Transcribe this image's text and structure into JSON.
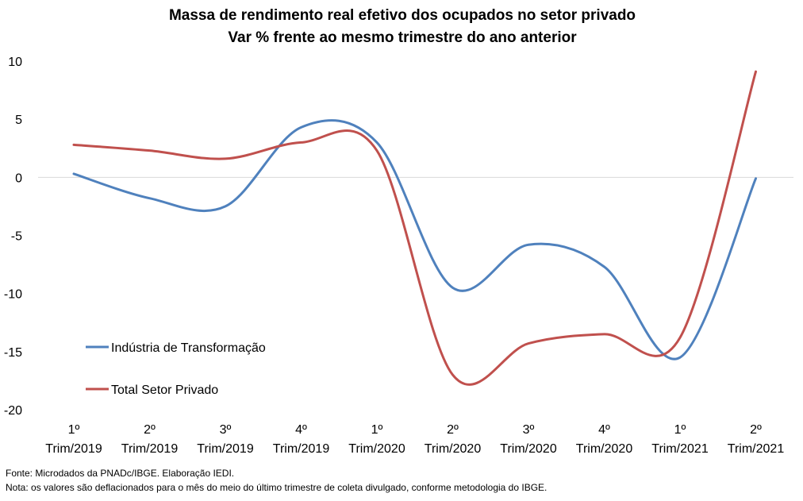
{
  "chart_data": {
    "type": "line",
    "title": "Massa de rendimento real efetivo dos ocupados no setor privado",
    "subtitle": "Var % frente ao mesmo trimestre do ano anterior",
    "categories": [
      [
        "1º",
        "Trim/2019"
      ],
      [
        "2º",
        "Trim/2019"
      ],
      [
        "3º",
        "Trim/2019"
      ],
      [
        "4º",
        "Trim/2019"
      ],
      [
        "1º",
        "Trim/2020"
      ],
      [
        "2º",
        "Trim/2020"
      ],
      [
        "3º",
        "Trim/2020"
      ],
      [
        "4º",
        "Trim/2020"
      ],
      [
        "1º",
        "Trim/2021"
      ],
      [
        "2º",
        "Trim/2021"
      ]
    ],
    "ylim": [
      -20,
      10
    ],
    "yticks": [
      10,
      5,
      0,
      -5,
      -10,
      -15,
      -20
    ],
    "legend_position": "bottom-left",
    "series": [
      {
        "name": "Indústria de Transformação",
        "color": "#4f81bd",
        "values": [
          0.3,
          -1.8,
          -2.5,
          4.3,
          3.0,
          -9.5,
          -5.8,
          -7.7,
          -15.5,
          -0.1
        ]
      },
      {
        "name": "Total Setor Privado",
        "color": "#c0504d",
        "values": [
          2.8,
          2.3,
          1.6,
          3.0,
          2.3,
          -17.0,
          -14.3,
          -13.5,
          -13.8,
          9.1
        ]
      }
    ]
  },
  "footnotes": {
    "source": "Fonte: Microdados da PNADc/IBGE. Elaboração IEDI.",
    "note": "Nota: os valores são deflacionados para o mês do meio do último trimestre de coleta divulgado, conforme metodologia do IBGE."
  }
}
